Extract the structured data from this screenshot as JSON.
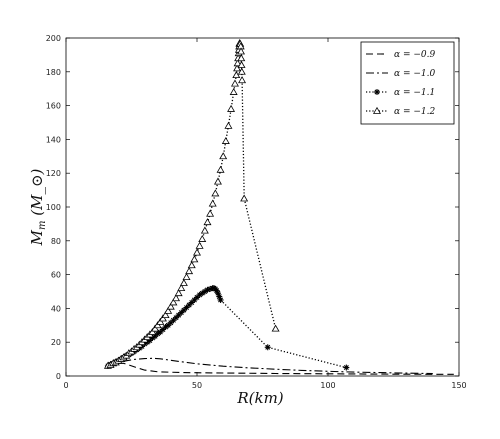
{
  "chart_data": {
    "type": "line",
    "xlabel": "R(km)",
    "ylabel": "M_m (M_⊙)",
    "xlim": [
      0,
      150
    ],
    "ylim": [
      0,
      200
    ],
    "xticks": [
      0,
      50,
      100,
      150
    ],
    "yticks": [
      0,
      20,
      40,
      60,
      80,
      100,
      120,
      140,
      160,
      180,
      200
    ],
    "grid": false,
    "legend_position": "top-right",
    "series": [
      {
        "name": "α = −0.9",
        "style": "dashed",
        "marker": "none",
        "points": [
          [
            16,
            6
          ],
          [
            18,
            7
          ],
          [
            20,
            7.5
          ],
          [
            22,
            7.5
          ],
          [
            24,
            6.5
          ],
          [
            27,
            5
          ],
          [
            30,
            3.5
          ],
          [
            35,
            2.5
          ],
          [
            45,
            2
          ],
          [
            60,
            1.8
          ],
          [
            80,
            1.5
          ],
          [
            100,
            1.3
          ],
          [
            120,
            1.1
          ],
          [
            140,
            1
          ],
          [
            148,
            1
          ]
        ]
      },
      {
        "name": "α = −1.0",
        "style": "dashdot",
        "marker": "none",
        "points": [
          [
            16,
            6
          ],
          [
            18,
            7
          ],
          [
            20,
            8
          ],
          [
            23,
            9
          ],
          [
            26,
            9.8
          ],
          [
            30,
            10.3
          ],
          [
            33,
            10.5
          ],
          [
            36,
            10.2
          ],
          [
            40,
            9.3
          ],
          [
            45,
            8.2
          ],
          [
            50,
            7.2
          ],
          [
            60,
            5.8
          ],
          [
            70,
            4.8
          ],
          [
            80,
            4
          ],
          [
            90,
            3.3
          ],
          [
            100,
            2.8
          ],
          [
            110,
            2.3
          ],
          [
            120,
            2
          ],
          [
            130,
            1.7
          ],
          [
            140,
            1.4
          ]
        ]
      },
      {
        "name": "α = −1.1",
        "style": "dotted",
        "marker": "star",
        "points": [
          [
            16,
            6
          ],
          [
            17,
            7
          ],
          [
            18,
            7.5
          ],
          [
            19,
            8.5
          ],
          [
            20,
            9
          ],
          [
            21,
            10
          ],
          [
            22,
            11
          ],
          [
            23,
            12
          ],
          [
            24,
            12.5
          ],
          [
            25,
            13.5
          ],
          [
            26,
            14.5
          ],
          [
            27,
            15.5
          ],
          [
            28,
            16.5
          ],
          [
            29,
            17.5
          ],
          [
            30,
            19
          ],
          [
            31,
            20
          ],
          [
            32,
            21
          ],
          [
            33,
            22.5
          ],
          [
            34,
            23.5
          ],
          [
            35,
            25
          ],
          [
            36,
            26
          ],
          [
            37,
            27.5
          ],
          [
            38,
            29
          ],
          [
            39,
            30
          ],
          [
            40,
            31.5
          ],
          [
            41,
            33
          ],
          [
            42,
            34.5
          ],
          [
            43,
            36
          ],
          [
            44,
            37.5
          ],
          [
            45,
            39
          ],
          [
            46,
            40.5
          ],
          [
            47,
            42
          ],
          [
            48,
            43.5
          ],
          [
            49,
            45
          ],
          [
            50,
            46.5
          ],
          [
            51,
            48
          ],
          [
            52,
            49
          ],
          [
            53,
            50
          ],
          [
            54,
            51
          ],
          [
            55,
            51.5
          ],
          [
            56,
            52
          ],
          [
            56.5,
            52
          ],
          [
            57,
            51.5
          ],
          [
            57.5,
            50.5
          ],
          [
            58,
            49
          ],
          [
            58.5,
            47
          ],
          [
            59,
            45
          ],
          [
            77,
            17
          ],
          [
            107,
            5
          ]
        ]
      },
      {
        "name": "α = −1.2",
        "style": "dotted",
        "marker": "triangle",
        "points": [
          [
            16,
            6
          ],
          [
            17,
            6.5
          ],
          [
            18,
            7.5
          ],
          [
            19,
            8
          ],
          [
            20,
            9
          ],
          [
            21,
            10
          ],
          [
            22,
            11
          ],
          [
            23,
            12
          ],
          [
            24,
            13.5
          ],
          [
            25,
            14.5
          ],
          [
            26,
            16
          ],
          [
            27,
            17
          ],
          [
            28,
            18.5
          ],
          [
            29,
            20
          ],
          [
            30,
            21.5
          ],
          [
            31,
            23
          ],
          [
            32,
            24.5
          ],
          [
            33,
            26
          ],
          [
            34,
            28
          ],
          [
            35,
            30
          ],
          [
            36,
            32
          ],
          [
            37,
            34
          ],
          [
            38,
            36
          ],
          [
            39,
            38.5
          ],
          [
            40,
            41
          ],
          [
            41,
            43.5
          ],
          [
            42,
            46
          ],
          [
            43,
            49
          ],
          [
            44,
            52
          ],
          [
            45,
            55
          ],
          [
            46,
            58.5
          ],
          [
            47,
            62
          ],
          [
            48,
            65.5
          ],
          [
            49,
            69
          ],
          [
            50,
            73
          ],
          [
            51,
            77
          ],
          [
            52,
            81
          ],
          [
            53,
            86
          ],
          [
            54,
            91
          ],
          [
            55,
            96
          ],
          [
            56,
            102
          ],
          [
            57,
            108
          ],
          [
            58,
            115
          ],
          [
            59,
            122
          ],
          [
            60,
            130
          ],
          [
            61,
            139
          ],
          [
            62,
            148
          ],
          [
            63,
            158
          ],
          [
            64,
            168
          ],
          [
            64.5,
            173
          ],
          [
            65,
            178
          ],
          [
            65.3,
            182
          ],
          [
            65.5,
            185
          ],
          [
            65.7,
            188
          ],
          [
            65.9,
            191
          ],
          [
            66,
            193
          ],
          [
            66.1,
            195
          ],
          [
            66.2,
            196.5
          ],
          [
            66.3,
            197
          ],
          [
            66.5,
            196.5
          ],
          [
            66.7,
            195
          ],
          [
            66.8,
            192
          ],
          [
            66.9,
            188
          ],
          [
            67,
            184
          ],
          [
            67.1,
            180
          ],
          [
            67.2,
            175
          ],
          [
            68,
            105
          ],
          [
            80,
            28
          ]
        ]
      }
    ]
  }
}
